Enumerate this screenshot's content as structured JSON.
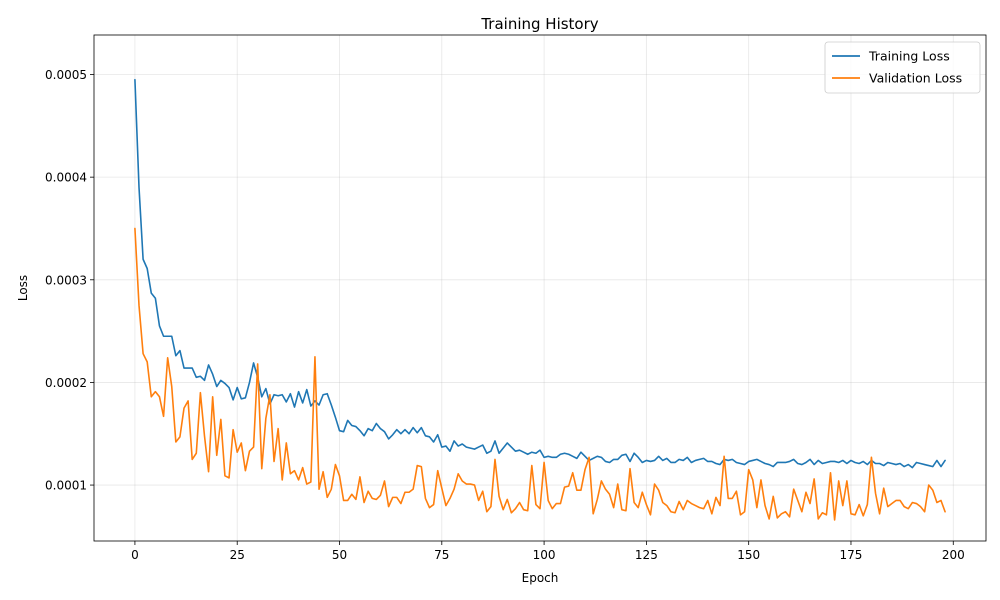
{
  "chart_data": {
    "type": "line",
    "title": "Training History",
    "xlabel": "Epoch",
    "ylabel": "Loss",
    "xlim": [
      -10,
      208
    ],
    "ylim": [
      4.55e-05,
      0.0005385
    ],
    "xticks": [
      0,
      25,
      50,
      75,
      100,
      125,
      150,
      175,
      200
    ],
    "xtick_labels": [
      "0",
      "25",
      "50",
      "75",
      "100",
      "125",
      "150",
      "175",
      "200"
    ],
    "yticks": [
      0.0001,
      0.0002,
      0.0003,
      0.0004,
      0.0005
    ],
    "ytick_labels": [
      "0.0001",
      "0.0002",
      "0.0003",
      "0.0004",
      "0.0005"
    ],
    "grid": true,
    "legend_position": "top-right",
    "series": [
      {
        "name": "Training Loss",
        "color": "#1f77b4",
        "values": [
          0.000495,
          0.00039,
          0.00032,
          0.000311,
          0.000287,
          0.000282,
          0.000255,
          0.000245,
          0.000245,
          0.000245,
          0.000226,
          0.000231,
          0.000214,
          0.000214,
          0.000214,
          0.000205,
          0.000206,
          0.000202,
          0.000217,
          0.000208,
          0.000196,
          0.000202,
          0.000199,
          0.000195,
          0.000183,
          0.000195,
          0.000184,
          0.000185,
          0.0002,
          0.000219,
          0.000205,
          0.000186,
          0.000194,
          0.000179,
          0.000188,
          0.000187,
          0.000188,
          0.000181,
          0.000189,
          0.000176,
          0.000191,
          0.00018,
          0.000193,
          0.000177,
          0.000182,
          0.000178,
          0.000188,
          0.000189,
          0.000178,
          0.000166,
          0.000153,
          0.000152,
          0.000163,
          0.000158,
          0.000157,
          0.000153,
          0.000148,
          0.000155,
          0.000153,
          0.00016,
          0.000155,
          0.000152,
          0.000145,
          0.000149,
          0.000154,
          0.00015,
          0.000154,
          0.00015,
          0.000156,
          0.000151,
          0.000156,
          0.000148,
          0.000147,
          0.000142,
          0.000149,
          0.000137,
          0.000138,
          0.000133,
          0.000143,
          0.000138,
          0.00014,
          0.000137,
          0.000136,
          0.000135,
          0.000137,
          0.000139,
          0.000131,
          0.000133,
          0.000143,
          0.000131,
          0.000136,
          0.000141,
          0.000137,
          0.000133,
          0.000134,
          0.000132,
          0.00013,
          0.000132,
          0.000131,
          0.000134,
          0.000127,
          0.000128,
          0.000127,
          0.000127,
          0.00013,
          0.000131,
          0.00013,
          0.000128,
          0.000126,
          0.000132,
          0.000128,
          0.000124,
          0.000126,
          0.000128,
          0.000127,
          0.000123,
          0.000122,
          0.000125,
          0.000125,
          0.000129,
          0.00013,
          0.000123,
          0.000131,
          0.000127,
          0.000122,
          0.000124,
          0.000123,
          0.000124,
          0.000128,
          0.000124,
          0.000126,
          0.000122,
          0.000122,
          0.000125,
          0.000124,
          0.000127,
          0.000122,
          0.000124,
          0.000125,
          0.000126,
          0.000123,
          0.000123,
          0.000121,
          0.00012,
          0.000125,
          0.000124,
          0.000125,
          0.000122,
          0.000121,
          0.00012,
          0.000123,
          0.000124,
          0.000125,
          0.000123,
          0.000121,
          0.00012,
          0.000118,
          0.000122,
          0.000122,
          0.000122,
          0.000123,
          0.000125,
          0.000121,
          0.00012,
          0.000122,
          0.000125,
          0.00012,
          0.000124,
          0.000121,
          0.000122,
          0.000123,
          0.000123,
          0.000122,
          0.000124,
          0.000121,
          0.000124,
          0.000122,
          0.000121,
          0.000123,
          0.00012,
          0.000124,
          0.000121,
          0.000121,
          0.000119,
          0.000122,
          0.000121,
          0.00012,
          0.000121,
          0.000118,
          0.00012,
          0.000117,
          0.000122,
          0.000121,
          0.00012,
          0.000119,
          0.000118,
          0.000124,
          0.000118,
          0.000124
        ]
      },
      {
        "name": "Validation Loss",
        "color": "#ff7f0e",
        "values": [
          0.00035,
          0.000275,
          0.000228,
          0.00022,
          0.000186,
          0.000191,
          0.000186,
          0.000167,
          0.000224,
          0.000196,
          0.000142,
          0.000147,
          0.000175,
          0.000182,
          0.000125,
          0.000131,
          0.00019,
          0.000148,
          0.000113,
          0.000186,
          0.000129,
          0.000164,
          0.000109,
          0.000107,
          0.000154,
          0.000132,
          0.000141,
          0.000114,
          0.000133,
          0.000137,
          0.000218,
          0.000116,
          0.000165,
          0.000188,
          0.000123,
          0.000155,
          0.000105,
          0.000141,
          0.000111,
          0.000114,
          0.000105,
          0.000117,
          0.000101,
          0.000103,
          0.000225,
          9.6e-05,
          0.000113,
          8.8e-05,
          9.6e-05,
          0.00012,
          0.000109,
          8.5e-05,
          8.5e-05,
          9.1e-05,
          8.6e-05,
          0.000108,
          8.3e-05,
          9.4e-05,
          8.7e-05,
          8.6e-05,
          9e-05,
          0.000104,
          7.9e-05,
          8.8e-05,
          8.8e-05,
          8.2e-05,
          9.3e-05,
          9.3e-05,
          9.6e-05,
          0.000119,
          0.000118,
          8.7e-05,
          7.8e-05,
          8.1e-05,
          0.000114,
          9.7e-05,
          8e-05,
          8.7e-05,
          9.6e-05,
          0.000111,
          0.000104,
          0.000101,
          0.000101,
          0.0001,
          8.5e-05,
          9.4e-05,
          7.4e-05,
          7.9e-05,
          0.000125,
          8.9e-05,
          7.6e-05,
          8.6e-05,
          7.3e-05,
          7.7e-05,
          8.3e-05,
          7.6e-05,
          7.5e-05,
          0.000119,
          8.1e-05,
          7.7e-05,
          0.000122,
          8.5e-05,
          7.7e-05,
          8.2e-05,
          8.2e-05,
          9.8e-05,
          9.9e-05,
          0.000112,
          9.5e-05,
          9.5e-05,
          0.000115,
          0.000127,
          7.2e-05,
          8.6e-05,
          0.000104,
          9.6e-05,
          9.1e-05,
          7.8e-05,
          0.000101,
          7.6e-05,
          7.5e-05,
          0.000116,
          8.3e-05,
          7.8e-05,
          9.3e-05,
          8.1e-05,
          7.1e-05,
          0.000101,
          9.5e-05,
          8.3e-05,
          8e-05,
          7.4e-05,
          7.3e-05,
          8.4e-05,
          7.6e-05,
          8.5e-05,
          8.2e-05,
          8e-05,
          7.8e-05,
          7.7e-05,
          8.5e-05,
          7.2e-05,
          8.8e-05,
          8e-05,
          0.000128,
          8.7e-05,
          8.7e-05,
          9.4e-05,
          7.1e-05,
          7.4e-05,
          0.000115,
          0.000105,
          7.8e-05,
          0.000105,
          8e-05,
          6.7e-05,
          8.9e-05,
          6.8e-05,
          7.2e-05,
          7.4e-05,
          6.9e-05,
          9.6e-05,
          8.5e-05,
          7.4e-05,
          9.3e-05,
          8.2e-05,
          0.000106,
          6.7e-05,
          7.3e-05,
          7.1e-05,
          0.000112,
          6.6e-05,
          0.000104,
          8e-05,
          0.000104,
          7.2e-05,
          7.1e-05,
          8.1e-05,
          7e-05,
          8.1e-05,
          0.000127,
          9.2e-05,
          7.2e-05,
          9.7e-05,
          7.9e-05,
          8.2e-05,
          8.5e-05,
          8.5e-05,
          7.9e-05,
          7.7e-05,
          8.3e-05,
          8.2e-05,
          7.9e-05,
          7.4e-05,
          0.0001,
          9.5e-05,
          8.3e-05,
          8.5e-05,
          7.4e-05
        ]
      }
    ]
  }
}
